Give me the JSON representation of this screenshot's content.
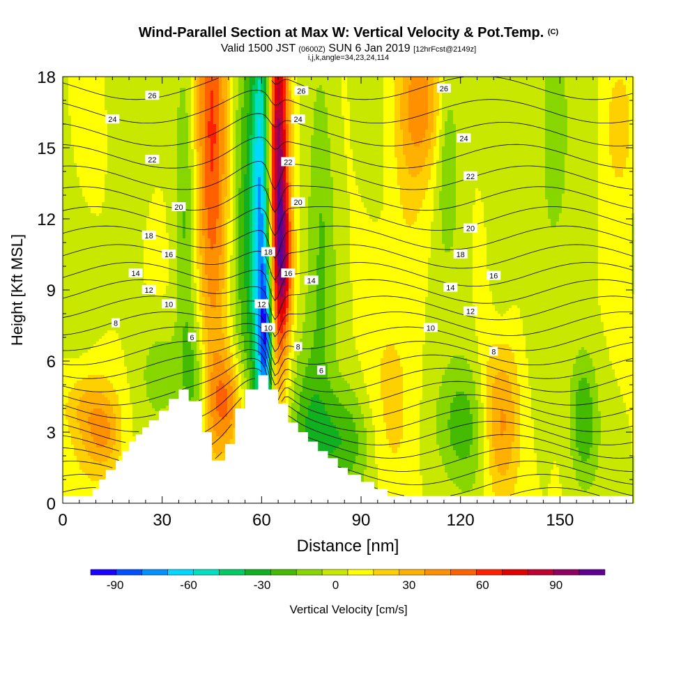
{
  "header": {
    "title": "Wind-Parallel Section at Max W: Vertical Velocity & Pot.Temp.",
    "title_tag": "(C)",
    "valid_prefix": "Valid 1500 JST",
    "valid_utc": "(0600Z)",
    "valid_date": "SUN 6 Jan 2019",
    "forecast": "[12hrFcst@2149z]",
    "indices": "i,j,k,angle=34,23,24,114"
  },
  "chart_data": {
    "type": "heatmap",
    "xlabel": "Distance [nm]",
    "ylabel": "Height [Kft MSL]",
    "xlim": [
      0,
      172
    ],
    "ylim": [
      0,
      18
    ],
    "xticks": [
      0,
      30,
      60,
      90,
      120,
      150
    ],
    "yticks": [
      0,
      3,
      6,
      9,
      12,
      15,
      18
    ],
    "colorbar": {
      "label": "Vertical Velocity [cm/s]",
      "min": -100,
      "max": 110,
      "ticks": [
        -90,
        -60,
        -30,
        0,
        30,
        60,
        90
      ],
      "colors": [
        "#1a00ff",
        "#0050ff",
        "#0090ff",
        "#00d8ff",
        "#00e0c0",
        "#00cc66",
        "#11b020",
        "#44bb00",
        "#88d600",
        "#c8e800",
        "#ffff00",
        "#ffd000",
        "#ffb000",
        "#ff9000",
        "#ff6000",
        "#ff2000",
        "#e00000",
        "#c00030",
        "#900060",
        "#600090"
      ]
    },
    "terrain_profile": {
      "x": [
        0,
        9,
        9,
        11,
        11,
        13,
        13,
        16,
        16,
        18,
        18,
        20,
        20,
        22,
        22,
        24,
        24,
        26,
        26,
        29,
        29,
        32,
        32,
        35,
        35,
        38,
        38,
        42,
        42,
        45,
        45,
        49,
        49,
        52,
        52,
        55,
        55,
        59,
        59,
        62,
        62,
        65,
        65,
        68,
        68,
        71,
        71,
        74,
        74,
        77,
        77,
        80,
        80,
        83,
        83,
        86,
        86,
        90,
        90,
        94,
        94,
        98,
        98,
        104,
        104,
        172
      ],
      "y": [
        0.3,
        0.3,
        0.6,
        0.6,
        1.0,
        1.0,
        1.4,
        1.4,
        1.8,
        1.8,
        2.2,
        2.2,
        2.6,
        2.6,
        2.9,
        2.9,
        3.2,
        3.2,
        3.5,
        3.5,
        3.9,
        3.9,
        4.4,
        4.4,
        4.8,
        4.8,
        4.3,
        4.3,
        3.0,
        3.0,
        1.8,
        1.8,
        2.5,
        2.5,
        4.0,
        4.0,
        4.8,
        4.8,
        5.4,
        5.4,
        4.8,
        4.8,
        4.2,
        4.2,
        3.4,
        3.4,
        3.0,
        3.0,
        2.6,
        2.6,
        2.2,
        2.2,
        1.9,
        1.9,
        1.5,
        1.5,
        1.2,
        1.2,
        0.9,
        0.9,
        0.6,
        0.6,
        0.3,
        0.3,
        0.3,
        0.3
      ]
    },
    "velocity_features": [
      {
        "x": 10,
        "y": 3.2,
        "sx": 5,
        "sy": 1.6,
        "w": 28
      },
      {
        "x": 13,
        "y": 3.0,
        "sx": 3,
        "sy": 0.9,
        "w": 12
      },
      {
        "x": 5,
        "y": 4.2,
        "sx": 4,
        "sy": 0.9,
        "w": 10
      },
      {
        "x": 30,
        "y": 5.6,
        "sx": 5,
        "sy": 1.5,
        "w": -16
      },
      {
        "x": 45,
        "y": 15,
        "sx": 3.5,
        "sy": 8,
        "w": 52
      },
      {
        "x": 50,
        "y": 4.2,
        "sx": 4,
        "sy": 1.5,
        "w": 40
      },
      {
        "x": 40,
        "y": 5,
        "sx": 2.5,
        "sy": 2,
        "w": -22
      },
      {
        "x": 37,
        "y": 12,
        "sx": 2.2,
        "sy": 5,
        "w": -22
      },
      {
        "x": 55,
        "y": 10,
        "sx": 3,
        "sy": 7,
        "w": -28
      },
      {
        "x": 60,
        "y": 12,
        "sx": 2.2,
        "sy": 7,
        "w": -70
      },
      {
        "x": 61.5,
        "y": 7,
        "sx": 1.6,
        "sy": 2.4,
        "w": -55
      },
      {
        "x": 65,
        "y": 14,
        "sx": 2.2,
        "sy": 6,
        "w": 95
      },
      {
        "x": 67,
        "y": 10,
        "sx": 1.8,
        "sy": 2,
        "w": 40
      },
      {
        "x": 74,
        "y": 2.8,
        "sx": 4,
        "sy": 3,
        "w": -26
      },
      {
        "x": 78,
        "y": 12,
        "sx": 3,
        "sy": 6,
        "w": -18
      },
      {
        "x": 84,
        "y": 2.6,
        "sx": 6,
        "sy": 1.6,
        "w": -28
      },
      {
        "x": 108,
        "y": 17,
        "sx": 5,
        "sy": 2.2,
        "w": 36
      },
      {
        "x": 104,
        "y": 13,
        "sx": 4,
        "sy": 3,
        "w": 10
      },
      {
        "x": 100,
        "y": 4,
        "sx": 5,
        "sy": 3,
        "w": 16
      },
      {
        "x": 120,
        "y": 3.2,
        "sx": 6,
        "sy": 2,
        "w": -26
      },
      {
        "x": 116,
        "y": 15,
        "sx": 2.5,
        "sy": 3,
        "w": -22
      },
      {
        "x": 132,
        "y": 3.5,
        "sx": 4,
        "sy": 2.6,
        "w": 38
      },
      {
        "x": 132,
        "y": 9,
        "sx": 2.5,
        "sy": 3,
        "w": -12
      },
      {
        "x": 148,
        "y": 16,
        "sx": 3.5,
        "sy": 4,
        "w": -18
      },
      {
        "x": 157,
        "y": 3.5,
        "sx": 3,
        "sy": 2,
        "w": -30
      },
      {
        "x": 168,
        "y": 16,
        "sx": 3,
        "sy": 2,
        "w": 22
      }
    ],
    "theta_labels": [
      {
        "x": 27,
        "y": 17.2,
        "text": "26"
      },
      {
        "x": 15,
        "y": 16.2,
        "text": "24"
      },
      {
        "x": 27,
        "y": 14.5,
        "text": "22"
      },
      {
        "x": 35,
        "y": 12.5,
        "text": "20"
      },
      {
        "x": 26,
        "y": 11.3,
        "text": "18"
      },
      {
        "x": 32,
        "y": 10.5,
        "text": "16"
      },
      {
        "x": 22,
        "y": 9.7,
        "text": "14"
      },
      {
        "x": 26,
        "y": 9.0,
        "text": "12"
      },
      {
        "x": 32,
        "y": 8.4,
        "text": "10"
      },
      {
        "x": 16,
        "y": 7.6,
        "text": "8"
      },
      {
        "x": 39,
        "y": 7.0,
        "text": "6"
      },
      {
        "x": 72,
        "y": 17.4,
        "text": "26"
      },
      {
        "x": 71,
        "y": 16.2,
        "text": "24"
      },
      {
        "x": 68,
        "y": 14.4,
        "text": "22"
      },
      {
        "x": 71,
        "y": 12.7,
        "text": "20"
      },
      {
        "x": 62,
        "y": 10.6,
        "text": "18"
      },
      {
        "x": 68,
        "y": 9.7,
        "text": "16"
      },
      {
        "x": 75,
        "y": 9.4,
        "text": "14"
      },
      {
        "x": 60,
        "y": 8.4,
        "text": "12"
      },
      {
        "x": 62,
        "y": 7.4,
        "text": "10"
      },
      {
        "x": 71,
        "y": 6.6,
        "text": "8"
      },
      {
        "x": 78,
        "y": 5.6,
        "text": "6"
      },
      {
        "x": 115,
        "y": 17.5,
        "text": "26"
      },
      {
        "x": 121,
        "y": 15.4,
        "text": "24"
      },
      {
        "x": 123,
        "y": 13.8,
        "text": "22"
      },
      {
        "x": 123,
        "y": 11.6,
        "text": "20"
      },
      {
        "x": 120,
        "y": 10.5,
        "text": "18"
      },
      {
        "x": 130,
        "y": 9.6,
        "text": "16"
      },
      {
        "x": 117,
        "y": 9.1,
        "text": "14"
      },
      {
        "x": 123,
        "y": 8.1,
        "text": "12"
      },
      {
        "x": 111,
        "y": 7.4,
        "text": "10"
      },
      {
        "x": 130,
        "y": 6.4,
        "text": "8"
      }
    ]
  }
}
